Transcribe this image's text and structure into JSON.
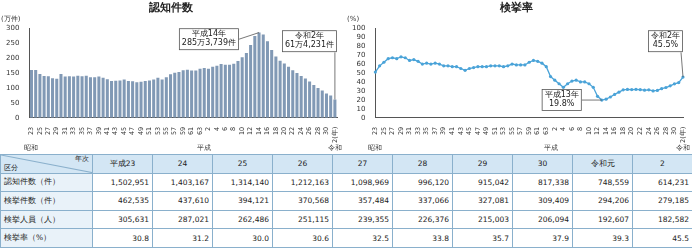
{
  "chart_data": [
    {
      "type": "bar",
      "title": "認知件数",
      "y_label": "(万件)",
      "categories": [
        "23",
        null,
        "25",
        null,
        "27",
        null,
        "29",
        null,
        "31",
        null,
        "33",
        null,
        "35",
        null,
        "37",
        null,
        "39",
        null,
        "41",
        null,
        "43",
        null,
        "45",
        null,
        "47",
        null,
        "49",
        null,
        "51",
        null,
        "53",
        null,
        "55",
        null,
        "57",
        null,
        "59",
        null,
        "61",
        null,
        "63",
        null,
        "2",
        null,
        "4",
        null,
        "6",
        null,
        "8",
        null,
        "10",
        null,
        "12",
        null,
        "14",
        null,
        "16",
        null,
        "18",
        null,
        "20",
        null,
        "22",
        null,
        "24",
        null,
        "26",
        null,
        "28",
        null,
        "30",
        null,
        "2(年)"
      ],
      "values": [
        160,
        160,
        147,
        140,
        139,
        132,
        131,
        147,
        138,
        139,
        138,
        141,
        139,
        141,
        136,
        136,
        138,
        134,
        129,
        123,
        124,
        125,
        128,
        123,
        122,
        119,
        121,
        123,
        125,
        128,
        134,
        128,
        136,
        146,
        151,
        153,
        159,
        161,
        158,
        158,
        164,
        167,
        164,
        171,
        174,
        180,
        178,
        178,
        181,
        190,
        203,
        217,
        244,
        274,
        285.3739,
        279,
        256,
        227,
        205,
        191,
        182,
        171,
        159,
        150.2951,
        140.3167,
        131.414,
        121.2163,
        109.8969,
        99.612,
        91.5042,
        81.7338,
        74.8559,
        61.4231
      ],
      "color": "#8199b5",
      "ylim": [
        0,
        300
      ],
      "yticks": [
        0,
        50,
        100,
        150,
        200,
        250,
        300
      ],
      "grid": false,
      "x_groups": [
        {
          "label": "昭和",
          "at_index": 0
        },
        {
          "label": "平成",
          "at_index": 41
        },
        {
          "label": "令和",
          "at_index": 72
        }
      ],
      "annotations": [
        {
          "text": [
            "平成14年",
            "285万3,739件"
          ],
          "point_index": 54
        },
        {
          "text": [
            "令和2年",
            "61万4,231件"
          ],
          "point_index": 72
        }
      ]
    },
    {
      "type": "line",
      "title": "検挙率",
      "y_label": "(%)",
      "categories": [
        "23",
        null,
        "25",
        null,
        "27",
        null,
        "29",
        null,
        "31",
        null,
        "33",
        null,
        "35",
        null,
        "37",
        null,
        "39",
        null,
        "41",
        null,
        "43",
        null,
        "45",
        null,
        "47",
        null,
        "49",
        null,
        "51",
        null,
        "53",
        null,
        "55",
        null,
        "57",
        null,
        "59",
        null,
        "61",
        null,
        "63",
        null,
        "2",
        null,
        "4",
        null,
        "6",
        null,
        "8",
        null,
        "10",
        null,
        "12",
        null,
        "14",
        null,
        "16",
        null,
        "18",
        null,
        "20",
        null,
        "22",
        null,
        "24",
        null,
        "26",
        null,
        "28",
        null,
        "30",
        null,
        "2(年)"
      ],
      "values": [
        51,
        58,
        62,
        66,
        67,
        66,
        68,
        67,
        64,
        65,
        63,
        60,
        61,
        60,
        61,
        60,
        58,
        58,
        57,
        57,
        55,
        53,
        55,
        56,
        57,
        57,
        57,
        58,
        58,
        58,
        57,
        58,
        60,
        59,
        59,
        59,
        62,
        64,
        63,
        61,
        57,
        46,
        42,
        38,
        34,
        38,
        41,
        42,
        40,
        40,
        38,
        34,
        24,
        19.8,
        20.8,
        23.2,
        26.1,
        28.6,
        31.2,
        31.7,
        31.5,
        31.8,
        31.4,
        30.8,
        31.2,
        30,
        30.6,
        32.5,
        33.8,
        35.7,
        37.9,
        39.3,
        45.5
      ],
      "color": "#4aa3d8",
      "marker": "circle",
      "ylim": [
        0,
        100
      ],
      "yticks": [
        0,
        10,
        20,
        30,
        40,
        50,
        60,
        70,
        80,
        90,
        100
      ],
      "grid": false,
      "x_groups": [
        {
          "label": "昭和",
          "at_index": 0
        },
        {
          "label": "平成",
          "at_index": 41
        },
        {
          "label": "令和",
          "at_index": 72
        }
      ],
      "annotations": [
        {
          "text": [
            "平成13年",
            "19.8%"
          ],
          "point_index": 53
        },
        {
          "text": [
            "令和2年",
            "45.5%"
          ],
          "point_index": 72
        }
      ]
    }
  ],
  "table": {
    "corner": {
      "top": "年次",
      "bottom": "区分"
    },
    "columns": [
      "平成23",
      "24",
      "25",
      "26",
      "27",
      "28",
      "29",
      "30",
      "令和元",
      "2"
    ],
    "rows": [
      {
        "label": "認知件数（件）",
        "values": [
          "1,502,951",
          "1,403,167",
          "1,314,140",
          "1,212,163",
          "1,098,969",
          "996,120",
          "915,042",
          "817,338",
          "748,559",
          "614,231"
        ]
      },
      {
        "label": "検挙件数（件）",
        "values": [
          "462,535",
          "437,610",
          "394,121",
          "370,568",
          "357,484",
          "337,066",
          "327,081",
          "309,409",
          "294,206",
          "279,185"
        ]
      },
      {
        "label": "検挙人員（人）",
        "values": [
          "305,631",
          "287,021",
          "262,486",
          "251,115",
          "239,355",
          "226,376",
          "215,003",
          "206,094",
          "192,607",
          "182,582"
        ]
      },
      {
        "label": "検挙率（%）",
        "values": [
          "30.8",
          "31.2",
          "30.0",
          "30.6",
          "32.5",
          "33.8",
          "35.7",
          "37.9",
          "39.3",
          "45.5"
        ]
      }
    ]
  }
}
